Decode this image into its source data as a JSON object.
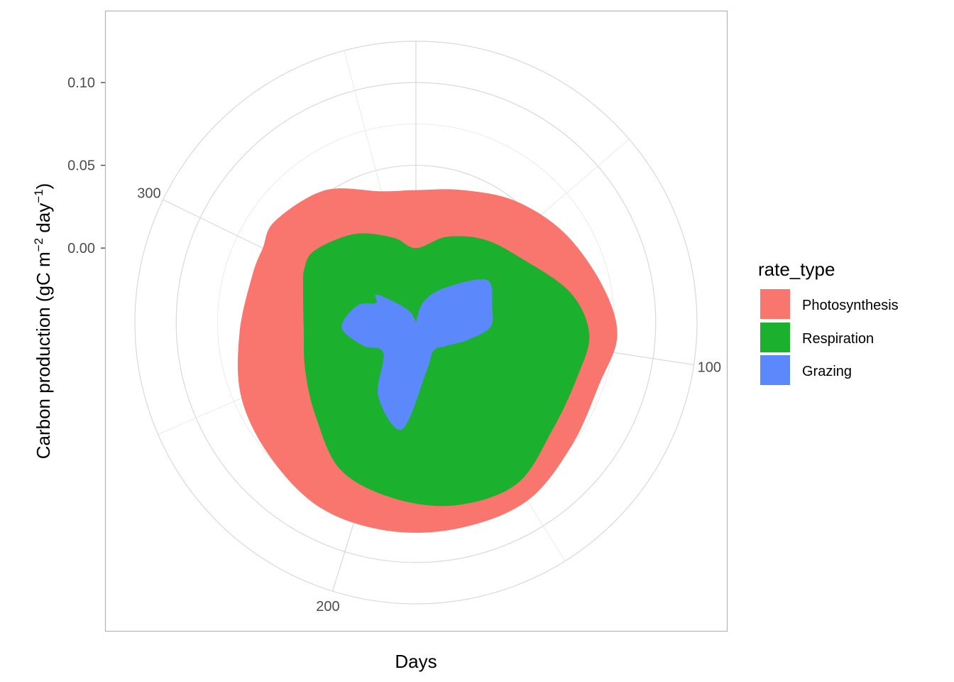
{
  "chart_data": {
    "type": "area",
    "coord": "polar",
    "xlabel": "Days",
    "ylabel_parts": [
      "Carbon production (gC m",
      "−2",
      " day",
      "−1",
      ")"
    ],
    "x_ticks": [
      100,
      200,
      300
    ],
    "x_range": [
      0,
      365
    ],
    "y_ticks": [
      0.0,
      0.05,
      0.1
    ],
    "y_tick_labels": [
      "0.00",
      "0.05",
      "0.10"
    ],
    "y_range": [
      -0.045,
      0.125
    ],
    "grid": true,
    "legend": {
      "title": "rate_type",
      "position": "right",
      "entries": [
        {
          "label": "Photosynthesis",
          "color": "#f8766d"
        },
        {
          "label": "Respiration",
          "color": "#1cb02f"
        },
        {
          "label": "Grazing",
          "color": "#5b89fb"
        }
      ]
    },
    "x": [
      0,
      20,
      40,
      60,
      80,
      95,
      110,
      130,
      150,
      170,
      190,
      210,
      230,
      250,
      270,
      290,
      300,
      310,
      330,
      350,
      365
    ],
    "series": [
      {
        "name": "Photosynthesis",
        "color": "#f8766d",
        "stacked_top": [
          0.035,
          0.04,
          0.05,
          0.06,
          0.07,
          0.077,
          0.072,
          0.075,
          0.082,
          0.082,
          0.082,
          0.081,
          0.075,
          0.07,
          0.062,
          0.058,
          0.058,
          0.06,
          0.052,
          0.037,
          0.035
        ]
      },
      {
        "name": "Respiration",
        "color": "#1cb02f",
        "stacked_top": [
          0.0,
          0.01,
          0.02,
          0.03,
          0.05,
          0.06,
          0.058,
          0.06,
          0.07,
          0.068,
          0.062,
          0.055,
          0.038,
          0.028,
          0.023,
          0.026,
          0.03,
          0.03,
          0.02,
          0.008,
          0.0
        ]
      },
      {
        "name": "Grazing",
        "color": "#5b89fb",
        "stacked_top": [
          -0.045,
          -0.032,
          -0.018,
          0.005,
          0.002,
          0.0,
          -0.012,
          -0.022,
          -0.025,
          -0.015,
          0.02,
          0.005,
          -0.018,
          -0.01,
          0.0,
          -0.008,
          -0.018,
          -0.016,
          -0.035,
          -0.044,
          -0.045
        ]
      }
    ]
  }
}
